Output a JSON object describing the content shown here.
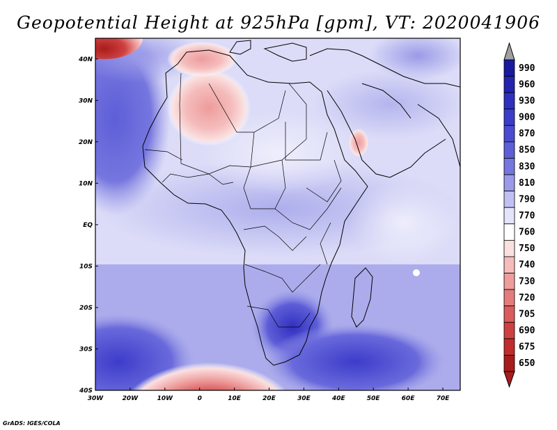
{
  "title": "Geopotential Height at 925hPa [gpm], VT: 2020041906",
  "credit": "GrADS: IGES/COLA",
  "map": {
    "lon_range": [
      -30,
      75
    ],
    "lat_range": [
      -40,
      45
    ],
    "lon_ticks": [
      {
        "value": -30,
        "label": "30W"
      },
      {
        "value": -20,
        "label": "20W"
      },
      {
        "value": -10,
        "label": "10W"
      },
      {
        "value": 0,
        "label": "0"
      },
      {
        "value": 10,
        "label": "10E"
      },
      {
        "value": 20,
        "label": "20E"
      },
      {
        "value": 30,
        "label": "30E"
      },
      {
        "value": 40,
        "label": "40E"
      },
      {
        "value": 50,
        "label": "50E"
      },
      {
        "value": 60,
        "label": "60E"
      },
      {
        "value": 70,
        "label": "70E"
      }
    ],
    "lat_ticks": [
      {
        "value": 40,
        "label": "40N"
      },
      {
        "value": 30,
        "label": "30N"
      },
      {
        "value": 20,
        "label": "20N"
      },
      {
        "value": 10,
        "label": "10N"
      },
      {
        "value": 0,
        "label": "EQ"
      },
      {
        "value": -10,
        "label": "10S"
      },
      {
        "value": -20,
        "label": "20S"
      },
      {
        "value": -30,
        "label": "30S"
      },
      {
        "value": -40,
        "label": "40S"
      }
    ],
    "background_color": "#dcdcf8"
  },
  "colorbar": {
    "levels": [
      {
        "label": "990",
        "color": "#1a1a9e"
      },
      {
        "label": "960",
        "color": "#2424b0"
      },
      {
        "label": "930",
        "color": "#3030c0"
      },
      {
        "label": "900",
        "color": "#3c3cca"
      },
      {
        "label": "870",
        "color": "#4b4bd2"
      },
      {
        "label": "850",
        "color": "#5e5ed8"
      },
      {
        "label": "830",
        "color": "#7676df"
      },
      {
        "label": "810",
        "color": "#9a9ae8"
      },
      {
        "label": "790",
        "color": "#c0c0f2"
      },
      {
        "label": "770",
        "color": "#e4e4fa"
      },
      {
        "label": "760",
        "color": "#ffffff"
      },
      {
        "label": "750",
        "color": "#fbe0e0"
      },
      {
        "label": "740",
        "color": "#f5bcbc"
      },
      {
        "label": "730",
        "color": "#ee9c9c"
      },
      {
        "label": "720",
        "color": "#e47c7c"
      },
      {
        "label": "705",
        "color": "#da5c5c"
      },
      {
        "label": "690",
        "color": "#cf4040"
      },
      {
        "label": "675",
        "color": "#c22c2c"
      },
      {
        "label": "650",
        "color": "#a81c1c"
      }
    ],
    "top_arrow_color": "#a0a0a0",
    "bottom_arrow_color": "#a81c1c"
  }
}
